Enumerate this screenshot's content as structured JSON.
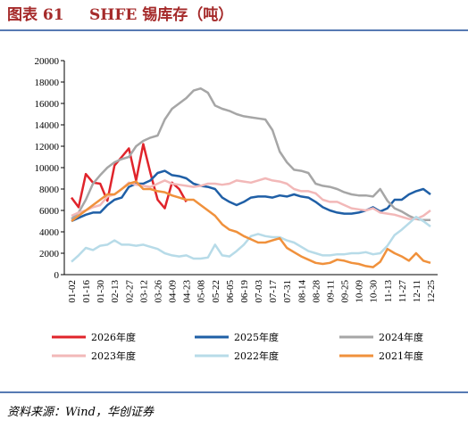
{
  "chart_data": {
    "type": "line",
    "title_label": "图表 61",
    "title": "SHFE 锡库存（吨）",
    "source": "资料来源：Wind，华创证券",
    "categories": [
      "01-02",
      null,
      "01-16",
      null,
      "01-30",
      null,
      "02-13",
      null,
      "02-27",
      null,
      "03-12",
      null,
      "03-26",
      null,
      "04-09",
      null,
      "04-23",
      null,
      "05-08",
      null,
      "05-22",
      null,
      "06-05",
      null,
      "06-19",
      null,
      "07-03",
      null,
      "07-17",
      null,
      "07-31",
      null,
      "08-14",
      null,
      "08-28",
      null,
      "09-11",
      null,
      "09-25",
      null,
      "10-09",
      null,
      "10-30",
      null,
      "11-13",
      null,
      "11-27",
      null,
      "12-11",
      null,
      "12-25"
    ],
    "ylim": [
      0,
      20000
    ],
    "yticks": [
      0,
      2000,
      4000,
      6000,
      8000,
      10000,
      12000,
      14000,
      16000,
      18000,
      20000
    ],
    "legend": "bottom",
    "series": [
      {
        "name": "2026年度",
        "color": "#e0242b",
        "values": [
          7200,
          6300,
          9400,
          8600,
          8500,
          6900,
          10200,
          11000,
          11800,
          8800,
          12200,
          9500,
          7000,
          6200,
          8600,
          8000,
          6800,
          null,
          null,
          null,
          null,
          null,
          null,
          null,
          null,
          null,
          null,
          null,
          null,
          null,
          null,
          null,
          null,
          null,
          null,
          null,
          null,
          null,
          null,
          null,
          null,
          null,
          null,
          null,
          null,
          null,
          null,
          null,
          null,
          null,
          null
        ]
      },
      {
        "name": "2025年度",
        "color": "#1f5fa6",
        "values": [
          5000,
          5300,
          5600,
          5800,
          5800,
          6500,
          7000,
          7200,
          8200,
          8500,
          8500,
          8800,
          9500,
          9700,
          9300,
          9200,
          9000,
          8500,
          8300,
          8200,
          8000,
          7200,
          6800,
          6500,
          6800,
          7200,
          7300,
          7300,
          7200,
          7400,
          7300,
          7500,
          7300,
          7200,
          6800,
          6300,
          6000,
          5800,
          5700,
          5700,
          5800,
          6000,
          6300,
          5900,
          6200,
          7000,
          7000,
          7500,
          7800,
          8000,
          7500
        ]
      },
      {
        "name": "2024年度",
        "color": "#a6a6a6",
        "values": [
          5200,
          5800,
          7000,
          8500,
          9300,
          10000,
          10500,
          10800,
          11000,
          12000,
          12500,
          12800,
          13000,
          14500,
          15500,
          16000,
          16500,
          17200,
          17400,
          17000,
          15800,
          15500,
          15300,
          15000,
          14800,
          14700,
          14600,
          14500,
          13500,
          11500,
          10500,
          9800,
          9700,
          9500,
          8500,
          8300,
          8200,
          8000,
          7700,
          7500,
          7400,
          7400,
          7300,
          8000,
          6900,
          6200,
          5900,
          5500,
          5200,
          5100,
          5100
        ]
      },
      {
        "name": "2023年度",
        "color": "#f2b8b8",
        "values": [
          5500,
          5800,
          6000,
          6300,
          6500,
          7300,
          7500,
          8000,
          8600,
          8400,
          8300,
          8200,
          8500,
          8800,
          8500,
          8400,
          8300,
          8200,
          8300,
          8500,
          8500,
          8400,
          8500,
          8800,
          8700,
          8600,
          8800,
          9000,
          8800,
          8700,
          8500,
          8000,
          7800,
          7800,
          7600,
          7000,
          6800,
          6800,
          6500,
          6200,
          6100,
          6000,
          6200,
          5800,
          5700,
          5600,
          5400,
          5200,
          5200,
          5500,
          6000
        ]
      },
      {
        "name": "2022年度",
        "color": "#b7dbe8",
        "values": [
          1200,
          1800,
          2500,
          2300,
          2700,
          2800,
          3200,
          2800,
          2800,
          2700,
          2800,
          2600,
          2400,
          2000,
          1800,
          1700,
          1800,
          1500,
          1500,
          1600,
          2800,
          1800,
          1700,
          2200,
          2800,
          3600,
          3800,
          3600,
          3500,
          3500,
          3200,
          3000,
          2600,
          2200,
          2000,
          1800,
          1800,
          1900,
          1900,
          2000,
          2000,
          2100,
          1900,
          2000,
          2700,
          3700,
          4200,
          4800,
          5400,
          5000,
          4500
        ]
      },
      {
        "name": "2021年度",
        "color": "#f0913c",
        "values": [
          5000,
          5500,
          6000,
          6500,
          7000,
          7500,
          7500,
          8000,
          8500,
          8700,
          8000,
          8000,
          7800,
          7700,
          7400,
          7200,
          7000,
          7000,
          6500,
          6000,
          5500,
          4700,
          4200,
          4000,
          3600,
          3300,
          3000,
          3000,
          3200,
          3400,
          2500,
          2100,
          1700,
          1400,
          1100,
          1000,
          1100,
          1400,
          1300,
          1100,
          1000,
          800,
          700,
          1200,
          2400,
          2000,
          1700,
          1300,
          2000,
          1300,
          1100
        ]
      }
    ]
  }
}
